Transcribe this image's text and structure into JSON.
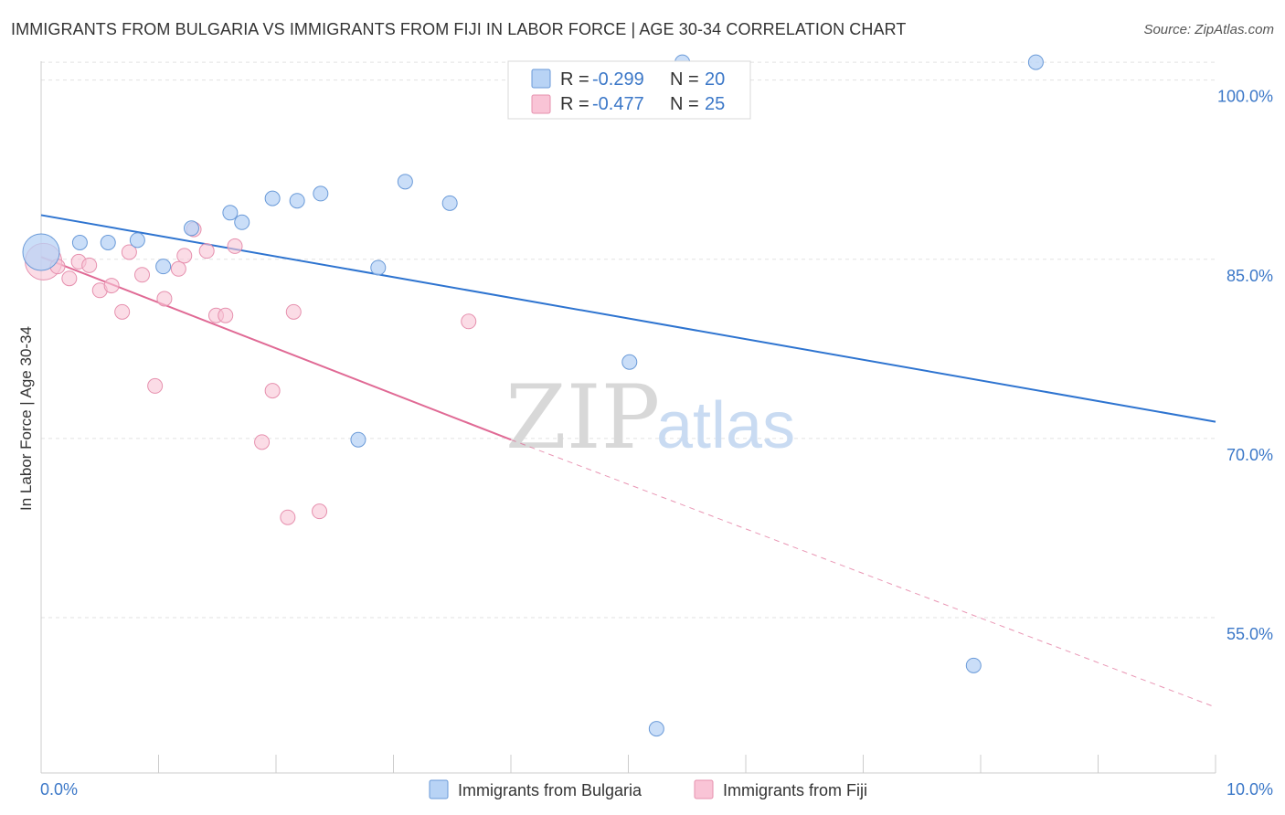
{
  "title": "IMMIGRANTS FROM BULGARIA VS IMMIGRANTS FROM FIJI IN LABOR FORCE | AGE 30-34 CORRELATION CHART",
  "source": "Source: ZipAtlas.com",
  "watermark": {
    "zip": "ZIP",
    "atlas": "atlas"
  },
  "colors": {
    "bulgaria_fill": "#b8d3f5",
    "bulgaria_stroke": "#6a9ad8",
    "bulgaria_line": "#2e74d0",
    "fiji_fill": "#f9c4d6",
    "fiji_stroke": "#e690ae",
    "fiji_line": "#e06a95",
    "tick_text": "#3c78c8"
  },
  "legend": {
    "rows": [
      {
        "r_label": "R = ",
        "r_value": "-0.299",
        "n_label": "N = ",
        "n_value": "20"
      },
      {
        "r_label": "R = ",
        "r_value": "-0.477",
        "n_label": "N = ",
        "n_value": "25"
      }
    ]
  },
  "chart_data": {
    "type": "scatter",
    "title": "IMMIGRANTS FROM BULGARIA VS IMMIGRANTS FROM FIJI IN LABOR FORCE | AGE 30-34 CORRELATION CHART",
    "xlabel": "",
    "ylabel": "In Labor Force | Age 30-34",
    "xlim": [
      0,
      10
    ],
    "ylim": [
      42,
      102.5
    ],
    "x_tick_labels": [
      "0.0%",
      "10.0%"
    ],
    "y_ticks": [
      100,
      85,
      70,
      55
    ],
    "y_tick_labels": [
      "100.0%",
      "85.0%",
      "70.0%",
      "55.0%"
    ],
    "grid": true,
    "legend_placement": "top-center",
    "series": [
      {
        "name": "Immigrants from Bulgaria",
        "color": "#b8d3f5",
        "points": [
          {
            "x": 0.0,
            "y": 85.6,
            "big": true
          },
          {
            "x": 0.33,
            "y": 86.4
          },
          {
            "x": 0.57,
            "y": 86.4
          },
          {
            "x": 0.82,
            "y": 86.6
          },
          {
            "x": 1.04,
            "y": 84.4
          },
          {
            "x": 1.28,
            "y": 87.6
          },
          {
            "x": 1.61,
            "y": 88.9
          },
          {
            "x": 1.71,
            "y": 88.1
          },
          {
            "x": 1.97,
            "y": 90.1
          },
          {
            "x": 2.18,
            "y": 89.9
          },
          {
            "x": 2.38,
            "y": 90.5
          },
          {
            "x": 2.7,
            "y": 69.9
          },
          {
            "x": 2.87,
            "y": 84.3
          },
          {
            "x": 3.1,
            "y": 91.5
          },
          {
            "x": 3.48,
            "y": 89.7
          },
          {
            "x": 5.01,
            "y": 76.4
          },
          {
            "x": 5.24,
            "y": 45.7
          },
          {
            "x": 5.46,
            "y": 101.5
          },
          {
            "x": 7.94,
            "y": 51.0
          },
          {
            "x": 8.47,
            "y": 101.5
          }
        ],
        "trend": {
          "x": [
            0,
            10
          ],
          "y": [
            88.7,
            71.4
          ]
        }
      },
      {
        "name": "Immigrants from Fiji",
        "color": "#f9c4d6",
        "points": [
          {
            "x": 0.02,
            "y": 84.8,
            "big": true
          },
          {
            "x": 0.14,
            "y": 84.4
          },
          {
            "x": 0.24,
            "y": 83.4
          },
          {
            "x": 0.32,
            "y": 84.8
          },
          {
            "x": 0.41,
            "y": 84.5
          },
          {
            "x": 0.5,
            "y": 82.4
          },
          {
            "x": 0.6,
            "y": 82.8
          },
          {
            "x": 0.69,
            "y": 80.6
          },
          {
            "x": 0.75,
            "y": 85.6
          },
          {
            "x": 0.86,
            "y": 83.7
          },
          {
            "x": 0.97,
            "y": 74.4
          },
          {
            "x": 1.05,
            "y": 81.7
          },
          {
            "x": 1.17,
            "y": 84.2
          },
          {
            "x": 1.22,
            "y": 85.3
          },
          {
            "x": 1.3,
            "y": 87.5
          },
          {
            "x": 1.41,
            "y": 85.7
          },
          {
            "x": 1.49,
            "y": 80.3
          },
          {
            "x": 1.57,
            "y": 80.3
          },
          {
            "x": 1.65,
            "y": 86.1
          },
          {
            "x": 1.88,
            "y": 69.7
          },
          {
            "x": 1.97,
            "y": 74.0
          },
          {
            "x": 2.1,
            "y": 63.4
          },
          {
            "x": 2.15,
            "y": 80.6
          },
          {
            "x": 2.37,
            "y": 63.9
          },
          {
            "x": 3.64,
            "y": 79.8
          }
        ],
        "trend": {
          "x": [
            0,
            4.0
          ],
          "y": [
            85.2,
            69.9
          ]
        },
        "trend_extended": {
          "x": [
            4.0,
            10
          ],
          "y": [
            69.9,
            47.5
          ]
        }
      }
    ]
  }
}
